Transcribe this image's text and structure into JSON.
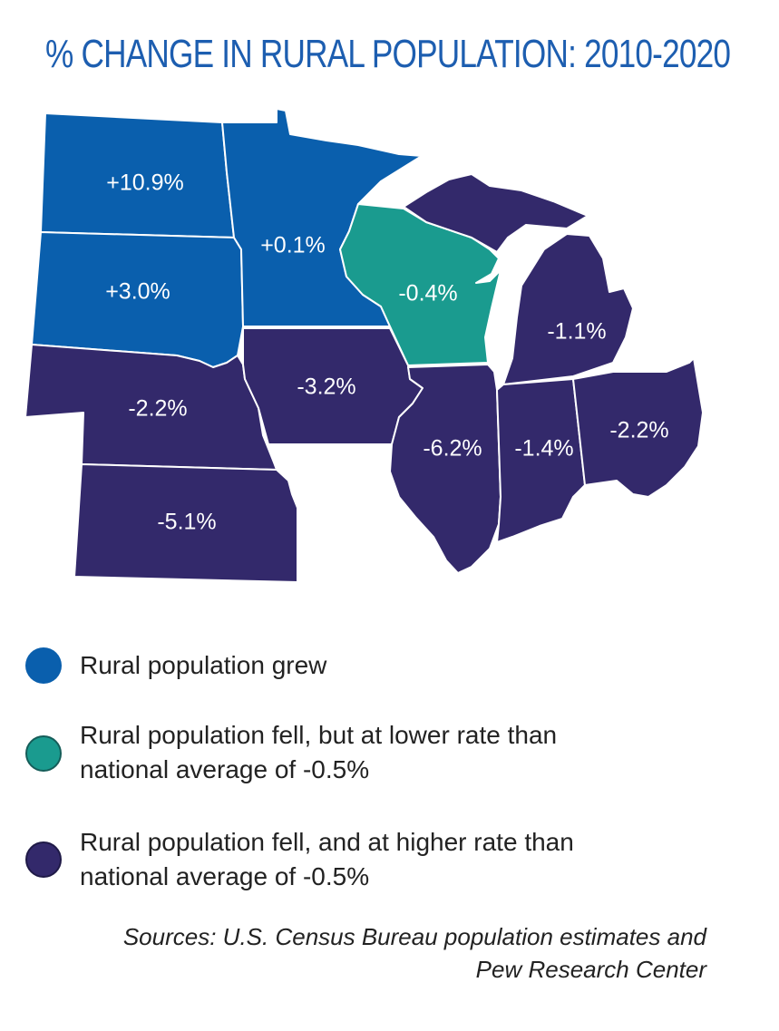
{
  "title": "% CHANGE IN RURAL POPULATION: 2010-2020",
  "colors": {
    "grew": "#0a5fad",
    "fell_lower": "#1a9b8f",
    "fell_higher": "#33296b"
  },
  "map": {
    "states": [
      {
        "id": "north-dakota",
        "label": "+10.9%",
        "category": "grew"
      },
      {
        "id": "south-dakota",
        "label": "+3.0%",
        "category": "grew"
      },
      {
        "id": "minnesota",
        "label": "+0.1%",
        "category": "grew"
      },
      {
        "id": "wisconsin",
        "label": "-0.4%",
        "category": "fell_lower"
      },
      {
        "id": "michigan",
        "label": "-1.1%",
        "category": "fell_higher"
      },
      {
        "id": "nebraska",
        "label": "-2.2%",
        "category": "fell_higher"
      },
      {
        "id": "iowa",
        "label": "-3.2%",
        "category": "fell_higher"
      },
      {
        "id": "illinois",
        "label": "-6.2%",
        "category": "fell_higher"
      },
      {
        "id": "indiana",
        "label": "-1.4%",
        "category": "fell_higher"
      },
      {
        "id": "ohio",
        "label": "-2.2%",
        "category": "fell_higher"
      },
      {
        "id": "kansas",
        "label": "-5.1%",
        "category": "fell_higher"
      }
    ]
  },
  "legend": {
    "grew": {
      "line1": "Rural population grew",
      "line2": ""
    },
    "fell_lower": {
      "line1": "Rural population fell, but at lower rate than",
      "line2": "national average of -0.5%"
    },
    "fell_higher": {
      "line1": "Rural population fell, and at higher rate than",
      "line2": "national average of -0.5%"
    }
  },
  "sources": {
    "line1": "Sources: U.S. Census Bureau population estimates and",
    "line2": "Pew Research Center"
  }
}
